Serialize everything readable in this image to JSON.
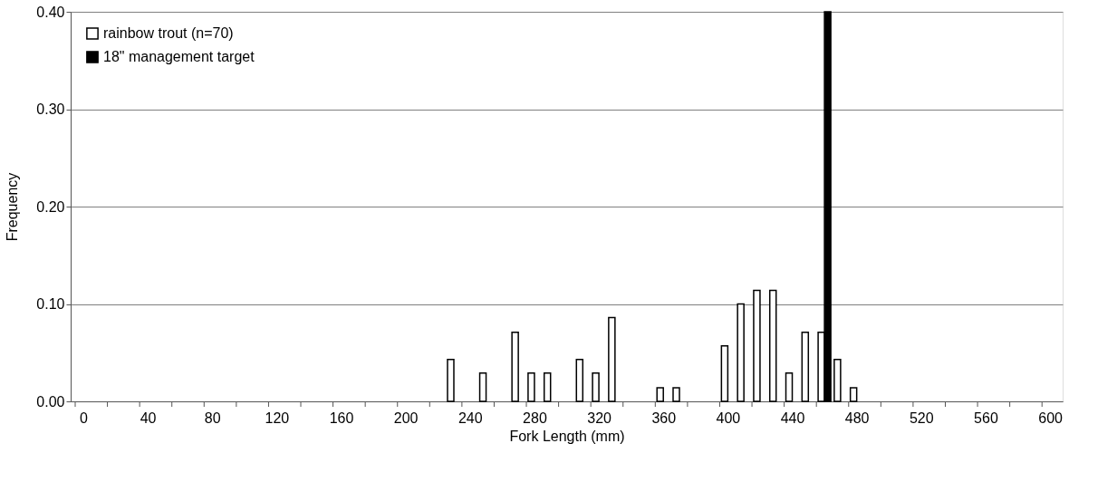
{
  "chart_data": {
    "type": "bar",
    "xlabel": "Fork Length (mm)",
    "ylabel": "Frequency",
    "xlim": [
      -5,
      605
    ],
    "ylim": [
      0,
      0.4
    ],
    "xticks": [
      {
        "value": -5,
        "label": null
      },
      0,
      {
        "value": 15,
        "label": null
      },
      {
        "value": 35,
        "label": null
      },
      40,
      {
        "value": 55,
        "label": null
      },
      {
        "value": 75,
        "label": null
      },
      80,
      {
        "value": 95,
        "label": null
      },
      {
        "value": 115,
        "label": null
      },
      120,
      {
        "value": 135,
        "label": null
      },
      {
        "value": 155,
        "label": null
      },
      160,
      {
        "value": 175,
        "label": null
      },
      {
        "value": 195,
        "label": null
      },
      200,
      {
        "value": 215,
        "label": null
      },
      {
        "value": 235,
        "label": null
      },
      240,
      {
        "value": 255,
        "label": null
      },
      {
        "value": 275,
        "label": null
      },
      280,
      {
        "value": 295,
        "label": null
      },
      {
        "value": 315,
        "label": null
      },
      320,
      {
        "value": 335,
        "label": null
      },
      {
        "value": 355,
        "label": null
      },
      360,
      {
        "value": 375,
        "label": null
      },
      {
        "value": 395,
        "label": null
      },
      400,
      {
        "value": 415,
        "label": null
      },
      {
        "value": 435,
        "label": null
      },
      440,
      {
        "value": 455,
        "label": null
      },
      {
        "value": 475,
        "label": null
      },
      480,
      {
        "value": 495,
        "label": null
      },
      {
        "value": 515,
        "label": null
      },
      520,
      {
        "value": 535,
        "label": null
      },
      {
        "value": 555,
        "label": null
      },
      560,
      {
        "value": 575,
        "label": null
      },
      {
        "value": 595,
        "label": null
      },
      600
    ],
    "yticks": [
      {
        "value": 0,
        "label": "0.00"
      },
      {
        "value": 0.1,
        "label": "0.10"
      },
      {
        "value": 0.2,
        "label": "0.20"
      },
      {
        "value": 0.3,
        "label": "0.30"
      },
      {
        "value": 0.4,
        "label": "0.40"
      }
    ],
    "grid": "y",
    "legend": "top left",
    "series": [
      {
        "name": "rainbow trout (n=70)",
        "color": "#ffffff",
        "x": [
          230,
          250,
          270,
          280,
          290,
          310,
          320,
          330,
          360,
          370,
          400,
          410,
          420,
          430,
          440,
          450,
          460,
          470,
          480
        ],
        "values": [
          0.043,
          0.029,
          0.071,
          0.029,
          0.029,
          0.043,
          0.029,
          0.086,
          0.014,
          0.014,
          0.057,
          0.1,
          0.114,
          0.114,
          0.029,
          0.071,
          0.071,
          0.043,
          0.014
        ]
      },
      {
        "name": "18\" management target",
        "color": "#000000",
        "x": [
          460
        ],
        "values": [
          0.4
        ]
      }
    ]
  }
}
